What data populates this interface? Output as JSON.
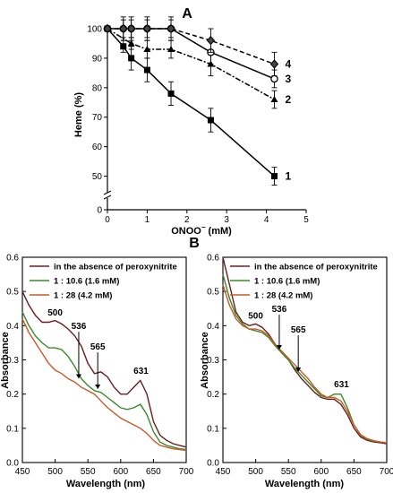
{
  "chart_data": [
    {
      "panel_label": "A",
      "type": "line",
      "xlabel": "ONOO",
      "xlabel_sup": "−",
      "xlabel_unit": " (mM)",
      "ylabel": "Heme (%)",
      "xlim": [
        0,
        5
      ],
      "ylim": [
        0,
        100
      ],
      "y_axis_break": true,
      "x_ticks": [
        "0",
        "1",
        "2",
        "3",
        "4",
        "5"
      ],
      "y_ticks": [
        "0",
        "50",
        "60",
        "70",
        "80",
        "90",
        "100"
      ],
      "series": [
        {
          "name": "1",
          "style": "solid",
          "marker": "filled-square",
          "x": [
            0,
            0.4,
            0.6,
            1.0,
            1.6,
            2.6,
            4.2
          ],
          "y": [
            100,
            94,
            90,
            86,
            78,
            69,
            50
          ],
          "err": [
            0,
            2,
            4,
            4,
            4,
            4,
            3
          ]
        },
        {
          "name": "2",
          "style": "dashdot",
          "marker": "filled-triangle",
          "x": [
            0,
            0.6,
            1.0,
            1.6,
            2.6,
            4.2
          ],
          "y": [
            100,
            95,
            93,
            93,
            88,
            76
          ],
          "err": [
            0,
            2,
            3,
            3,
            4,
            3
          ]
        },
        {
          "name": "3",
          "style": "solid",
          "marker": "open-circle",
          "x": [
            0,
            0.4,
            0.6,
            1.0,
            1.6,
            2.6,
            4.2
          ],
          "y": [
            100,
            100,
            100,
            100,
            100,
            92,
            83
          ],
          "err": [
            0,
            4,
            4,
            4,
            4,
            4,
            3
          ]
        },
        {
          "name": "4",
          "style": "dashed",
          "marker": "filled-diamond",
          "x": [
            0,
            0.4,
            0.6,
            1.0,
            1.6,
            2.6,
            4.2
          ],
          "y": [
            100,
            100,
            100,
            100,
            100,
            96,
            88
          ],
          "err": [
            0,
            3,
            3,
            3,
            3,
            4,
            4
          ]
        }
      ]
    },
    {
      "panel_label": "B",
      "type": "line",
      "xlabel": "Wavelength (nm)",
      "ylabel": "Absorbance",
      "xlim": [
        450,
        700
      ],
      "ylim": [
        0,
        0.6
      ],
      "x_ticks": [
        "450",
        "500",
        "550",
        "600",
        "650",
        "700"
      ],
      "y_ticks": [
        "0.0",
        "0.1",
        "0.2",
        "0.3",
        "0.4",
        "0.5",
        "0.6"
      ],
      "annotations": [
        "500",
        "536",
        "565",
        "631"
      ],
      "series": [
        {
          "name": "in the absence of peroxynitrite",
          "color": "#6b1d1d",
          "x": [
            450,
            460,
            470,
            480,
            490,
            500,
            510,
            520,
            530,
            540,
            550,
            560,
            570,
            580,
            590,
            600,
            610,
            620,
            630,
            640,
            650,
            660,
            670,
            680,
            690,
            700
          ],
          "y": [
            0.5,
            0.46,
            0.43,
            0.41,
            0.41,
            0.415,
            0.405,
            0.39,
            0.37,
            0.34,
            0.29,
            0.26,
            0.265,
            0.25,
            0.22,
            0.2,
            0.2,
            0.22,
            0.24,
            0.2,
            0.12,
            0.08,
            0.065,
            0.055,
            0.05,
            0.045
          ]
        },
        {
          "name": "1 : 10.6 (1.6 mM)",
          "color": "#3a8a2a",
          "x": [
            450,
            460,
            470,
            480,
            490,
            500,
            510,
            520,
            530,
            540,
            550,
            560,
            570,
            580,
            590,
            600,
            610,
            620,
            630,
            640,
            650,
            660,
            670,
            680,
            690,
            700
          ],
          "y": [
            0.44,
            0.4,
            0.37,
            0.35,
            0.335,
            0.335,
            0.33,
            0.31,
            0.28,
            0.245,
            0.225,
            0.21,
            0.205,
            0.19,
            0.175,
            0.16,
            0.155,
            0.16,
            0.17,
            0.14,
            0.09,
            0.06,
            0.05,
            0.045,
            0.04,
            0.038
          ]
        },
        {
          "name": "1 : 28 (4.2 mM)",
          "color": "#c85a2a",
          "x": [
            450,
            460,
            470,
            480,
            490,
            500,
            510,
            520,
            530,
            540,
            550,
            560,
            570,
            580,
            590,
            600,
            610,
            620,
            630,
            640,
            650,
            660,
            670,
            680,
            690,
            700
          ],
          "y": [
            0.42,
            0.38,
            0.35,
            0.32,
            0.29,
            0.27,
            0.26,
            0.245,
            0.235,
            0.22,
            0.21,
            0.2,
            0.18,
            0.16,
            0.145,
            0.13,
            0.12,
            0.11,
            0.1,
            0.085,
            0.065,
            0.05,
            0.045,
            0.04,
            0.038,
            0.035
          ]
        }
      ]
    },
    {
      "panel_label": "",
      "type": "line",
      "xlabel": "Wavelength (nm)",
      "ylabel": "Absorbance",
      "xlim": [
        450,
        700
      ],
      "ylim": [
        0,
        0.6
      ],
      "x_ticks": [
        "450",
        "500",
        "550",
        "600",
        "650",
        "700"
      ],
      "y_ticks": [
        "0.0",
        "0.1",
        "0.2",
        "0.3",
        "0.4",
        "0.5",
        "0.6"
      ],
      "annotations": [
        "500",
        "536",
        "565",
        "631"
      ],
      "series": [
        {
          "name": "in the absence of peroxynitrite",
          "color": "#6b1d1d",
          "x": [
            450,
            460,
            470,
            480,
            490,
            500,
            510,
            520,
            530,
            540,
            550,
            560,
            570,
            580,
            590,
            600,
            610,
            620,
            630,
            640,
            650,
            660,
            670,
            680,
            690,
            700
          ],
          "y": [
            0.6,
            0.52,
            0.44,
            0.41,
            0.4,
            0.405,
            0.395,
            0.375,
            0.345,
            0.32,
            0.3,
            0.27,
            0.245,
            0.225,
            0.205,
            0.19,
            0.185,
            0.185,
            0.17,
            0.14,
            0.1,
            0.075,
            0.065,
            0.06,
            0.058,
            0.055
          ]
        },
        {
          "name": "1 : 10.6 (1.6 mM)",
          "color": "#3a8a2a",
          "x": [
            450,
            460,
            470,
            480,
            490,
            500,
            510,
            520,
            530,
            540,
            550,
            560,
            570,
            580,
            590,
            600,
            610,
            620,
            630,
            640,
            650,
            660,
            670,
            680,
            690,
            700
          ],
          "y": [
            0.55,
            0.48,
            0.43,
            0.405,
            0.39,
            0.385,
            0.38,
            0.365,
            0.34,
            0.32,
            0.3,
            0.275,
            0.255,
            0.235,
            0.215,
            0.195,
            0.19,
            0.2,
            0.2,
            0.16,
            0.11,
            0.08,
            0.068,
            0.062,
            0.06,
            0.058
          ]
        },
        {
          "name": "1 : 28 (4.2 mM)",
          "color": "#c85a2a",
          "x": [
            450,
            460,
            470,
            480,
            490,
            500,
            510,
            520,
            530,
            540,
            550,
            560,
            570,
            580,
            590,
            600,
            610,
            620,
            630,
            640,
            650,
            660,
            670,
            680,
            690,
            700
          ],
          "y": [
            0.52,
            0.46,
            0.42,
            0.4,
            0.39,
            0.39,
            0.385,
            0.37,
            0.345,
            0.325,
            0.305,
            0.285,
            0.265,
            0.245,
            0.22,
            0.2,
            0.19,
            0.19,
            0.18,
            0.15,
            0.11,
            0.082,
            0.07,
            0.064,
            0.06,
            0.058
          ]
        }
      ]
    }
  ]
}
